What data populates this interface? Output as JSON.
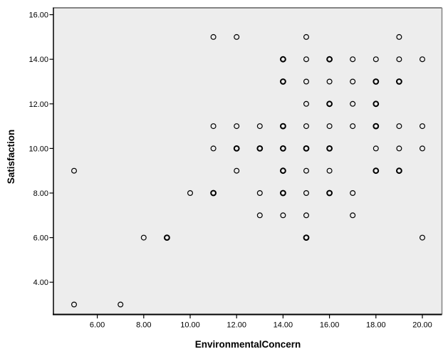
{
  "chart_data": {
    "type": "scatter",
    "title": "",
    "xlabel": "EnvironmentalConcern",
    "ylabel": "Satisfaction",
    "xlim": [
      4.1,
      20.9
    ],
    "ylim": [
      2.4,
      16.35
    ],
    "grid": false,
    "legend": false,
    "x_ticks": [
      6,
      8,
      10,
      12,
      14,
      16,
      18,
      20
    ],
    "x_tick_labels": [
      "6.00",
      "8.00",
      "10.00",
      "12.00",
      "14.00",
      "16.00",
      "18.00",
      "20.00"
    ],
    "y_ticks": [
      4,
      6,
      8,
      10,
      12,
      14,
      16
    ],
    "y_tick_labels": [
      "4.00",
      "6.00",
      "8.00",
      "10.00",
      "12.00",
      "14.00",
      "16.00"
    ],
    "marker": {
      "shape": "open-circle",
      "radius": 3.4,
      "stroke": "#000000",
      "fill": "none"
    },
    "colors": {
      "plot_background": "#ededed",
      "page_background": "#ffffff",
      "frame": "#848484",
      "axis": "#000000",
      "tick": "#000000"
    },
    "points_note": "each point is [EnvironmentalConcern, Satisfaction, weight]; weight 2 = darker ring from overplotted cases",
    "points": [
      [
        5,
        3,
        1
      ],
      [
        7,
        3,
        1
      ],
      [
        8,
        6,
        1
      ],
      [
        9,
        6,
        2
      ],
      [
        15,
        6,
        2
      ],
      [
        20,
        6,
        1
      ],
      [
        13,
        7,
        1
      ],
      [
        14,
        7,
        1
      ],
      [
        15,
        7,
        1
      ],
      [
        17,
        7,
        1
      ],
      [
        10,
        8,
        1
      ],
      [
        11,
        8,
        2
      ],
      [
        13,
        8,
        1
      ],
      [
        14,
        8,
        2
      ],
      [
        15,
        8,
        1
      ],
      [
        16,
        8,
        2
      ],
      [
        17,
        8,
        1
      ],
      [
        5,
        9,
        1
      ],
      [
        12,
        9,
        1
      ],
      [
        14,
        9,
        2
      ],
      [
        15,
        9,
        1
      ],
      [
        16,
        9,
        1
      ],
      [
        18,
        9,
        2
      ],
      [
        19,
        9,
        2
      ],
      [
        11,
        10,
        1
      ],
      [
        12,
        10,
        2
      ],
      [
        13,
        10,
        2
      ],
      [
        14,
        10,
        2
      ],
      [
        15,
        10,
        2
      ],
      [
        16,
        10,
        2
      ],
      [
        18,
        10,
        1
      ],
      [
        19,
        10,
        1
      ],
      [
        20,
        10,
        1
      ],
      [
        11,
        11,
        1
      ],
      [
        12,
        11,
        1
      ],
      [
        13,
        11,
        1
      ],
      [
        14,
        11,
        2
      ],
      [
        15,
        11,
        1
      ],
      [
        16,
        11,
        1
      ],
      [
        17,
        11,
        1
      ],
      [
        18,
        11,
        2
      ],
      [
        19,
        11,
        1
      ],
      [
        20,
        11,
        1
      ],
      [
        15,
        12,
        1
      ],
      [
        16,
        12,
        2
      ],
      [
        17,
        12,
        1
      ],
      [
        18,
        12,
        2
      ],
      [
        14,
        13,
        2
      ],
      [
        15,
        13,
        1
      ],
      [
        16,
        13,
        1
      ],
      [
        17,
        13,
        1
      ],
      [
        18,
        13,
        2
      ],
      [
        19,
        13,
        2
      ],
      [
        14,
        14,
        2
      ],
      [
        15,
        14,
        1
      ],
      [
        16,
        14,
        2
      ],
      [
        17,
        14,
        1
      ],
      [
        18,
        14,
        1
      ],
      [
        19,
        14,
        1
      ],
      [
        20,
        14,
        1
      ],
      [
        11,
        15,
        1
      ],
      [
        12,
        15,
        1
      ],
      [
        15,
        15,
        1
      ],
      [
        19,
        15,
        1
      ]
    ]
  }
}
